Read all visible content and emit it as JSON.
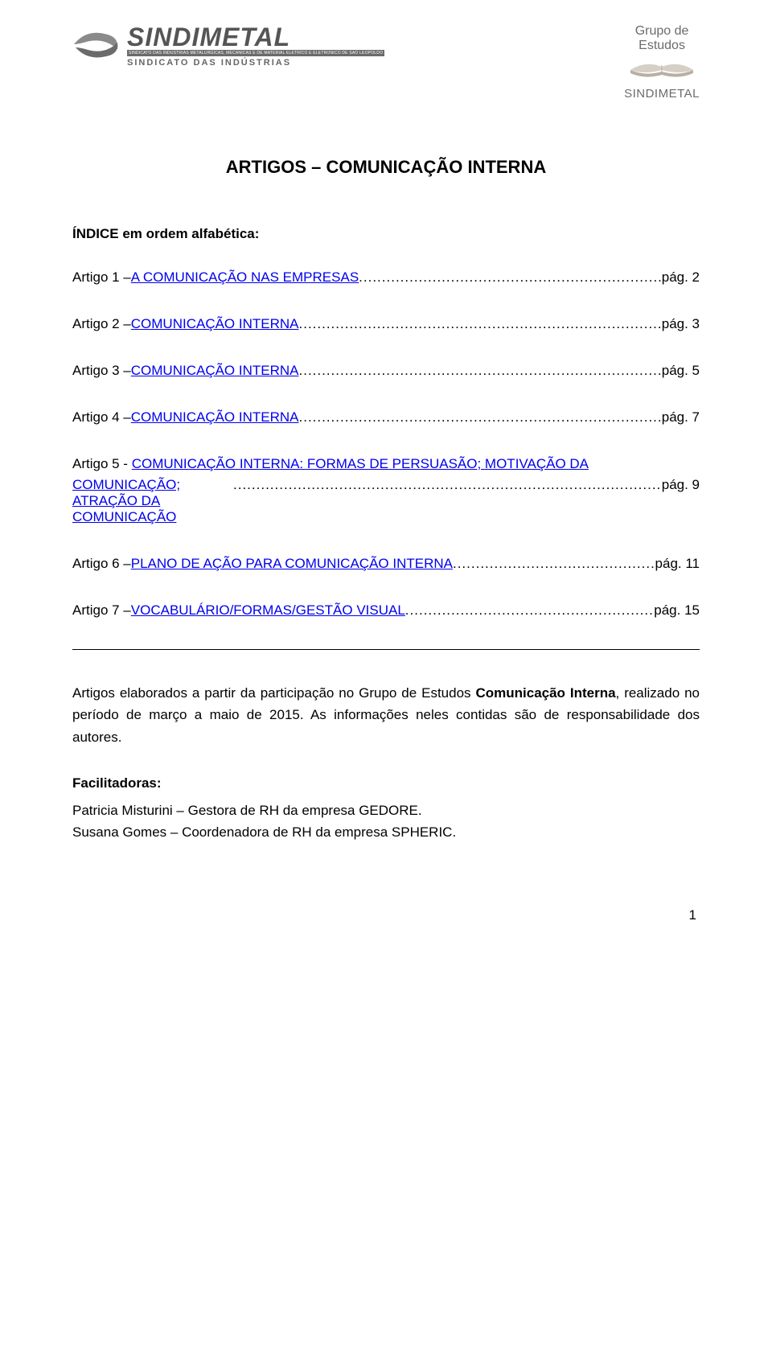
{
  "header": {
    "logo_main": "SINDIMETAL",
    "logo_bar": "SINDICATO DAS INDUSTRIAS METALURGICAS, MECANICAS E DE MATERIAL ELETRICO E ELETRONICO DE SAO LEOPOLDO",
    "logo_sub": "SINDICATO DAS INDÚSTRIAS",
    "right_line1": "Grupo de",
    "right_line2": "Estudos",
    "right_brand": "SINDIMETAL",
    "colors": {
      "logo_text": "#555555",
      "logo_bar_bg": "#6b6b6b",
      "book_pages": "#d6cfc6",
      "book_shadow": "#b8afa3",
      "link": "#0000ee"
    }
  },
  "title": "ARTIGOS – COMUNICAÇÃO INTERNA",
  "index_label": "ÍNDICE em ordem alfabética:",
  "toc": [
    {
      "prefix": "Artigo 1 – ",
      "link": "A COMUNICAÇÃO NAS EMPRESAS ",
      "page": " pág. 2"
    },
    {
      "prefix": "Artigo 2 – ",
      "link": "COMUNICAÇÃO INTERNA",
      "page": " pág. 3"
    },
    {
      "prefix": "Artigo 3 – ",
      "link": "COMUNICAÇÃO INTERNA",
      "page": " pág. 5"
    },
    {
      "prefix": "Artigo 4 – ",
      "link": "COMUNICAÇÃO INTERNA",
      "page": " pág. 7"
    }
  ],
  "toc5": {
    "prefix": "Artigo 5 - ",
    "link_line1": "COMUNICAÇÃO INTERNA: FORMAS DE PERSUASÃO; MOTIVAÇÃO DA",
    "link_line2": "COMUNICAÇÃO; ATRAÇÃO DA COMUNICAÇÃO ",
    "page": " pág. 9"
  },
  "toc_rest": [
    {
      "prefix": "Artigo 6 – ",
      "link": "PLANO DE AÇÃO PARA COMUNICAÇÃO INTERNA ",
      "page": "pág. 11"
    },
    {
      "prefix": "Artigo 7 – ",
      "link": "VOCABULÁRIO/FORMAS/GESTÃO VISUAL ",
      "page": " pág. 15"
    }
  ],
  "footer_para": "Artigos elaborados a partir da participação no Grupo de Estudos Comunicação Interna, realizado no período de março a maio de 2015. As informações neles contidas são de responsabilidade dos autores.",
  "footer_para_html": [
    {
      "t": "Artigos elaborados a partir da participação no Grupo de Estudos ",
      "b": false
    },
    {
      "t": "Comunicação Interna",
      "b": true
    },
    {
      "t": ", realizado no período de março a maio de 2015. As informações neles contidas são de responsabilidade dos autores.",
      "b": false
    }
  ],
  "facilitadoras_label": "Facilitadoras:",
  "facilitadoras": [
    "Patricia Misturini – Gestora de RH da empresa GEDORE.",
    "Susana Gomes – Coordenadora de RH da empresa SPHERIC."
  ],
  "page_number": "1"
}
